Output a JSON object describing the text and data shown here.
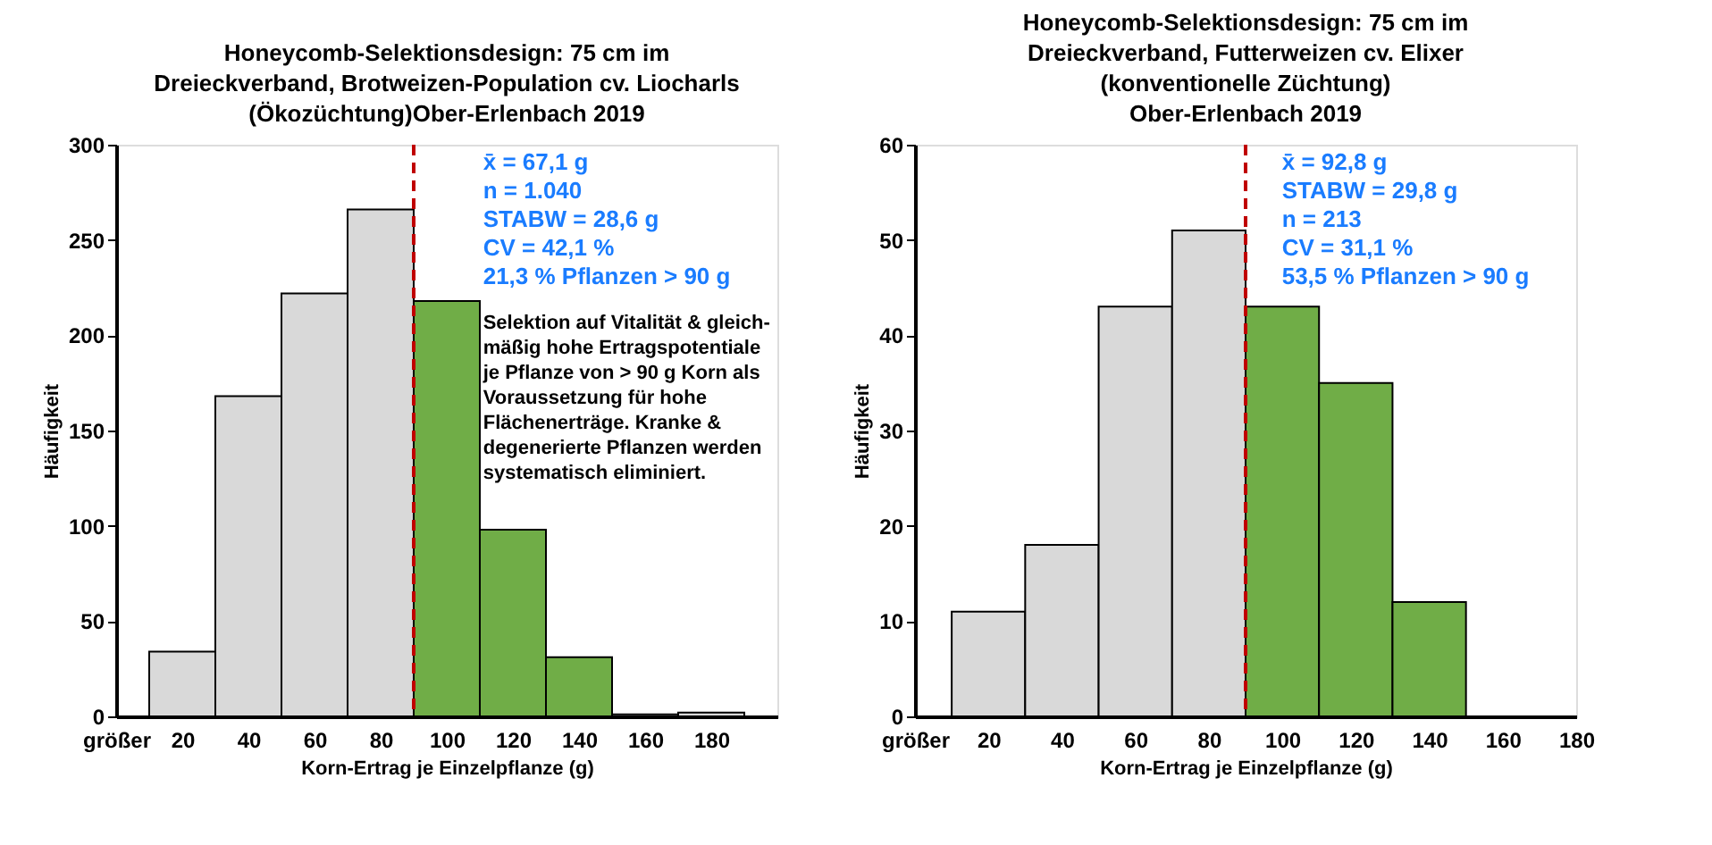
{
  "chart_data": [
    {
      "type": "histogram",
      "title": "Honeycomb-Selektionsdesign: 75 cm im\nDreieckverband, Brotweizen-Population cv. Liocharls\n(Ökozüchtung)Ober-Erlenbach 2019",
      "xlabel": "Korn-Ertrag je Einzelpflanze (g)",
      "ylabel": "Häufigkeit",
      "bins": [
        10,
        30,
        50,
        70,
        90,
        110,
        130,
        150,
        170,
        190
      ],
      "values": [
        34,
        168,
        222,
        266,
        218,
        98,
        31,
        1,
        2
      ],
      "colors": [
        "#d9d9d9",
        "#d9d9d9",
        "#d9d9d9",
        "#d9d9d9",
        "#70ad47",
        "#70ad47",
        "#70ad47",
        "#d9d9d9",
        "#d9d9d9"
      ],
      "xlim": [
        0,
        200
      ],
      "xticks": [
        {
          "value": 0,
          "label": "größer"
        },
        20,
        40,
        60,
        80,
        100,
        120,
        140,
        160,
        180
      ],
      "ylim": [
        0,
        300
      ],
      "yticks": [
        0,
        50,
        100,
        150,
        200,
        250,
        300
      ],
      "ref_lines": [
        {
          "axis": "x",
          "value": 90,
          "color": "#c00000",
          "line_style": "dashed"
        }
      ],
      "annotations": [
        "x̄ = 67,1 g",
        "n =  1.040",
        "STABW  = 28,6 g",
        "CV =  42,1 %",
        "21,3 % Pflanzen > 90 g",
        "Selektion auf Vitalität & gleich-\nmäßig hohe Ertragspotentiale\nje  Pflanze von > 90 g Korn als\nVoraussetzung für hohe\nFlächenerträge. Kranke &\ndegenerierte Pflanzen werden\nsystematisch eliminiert."
      ]
    },
    {
      "type": "histogram",
      "title": "Honeycomb-Selektionsdesign: 75 cm im\nDreieckverband, Futterweizen cv. Elixer\n(konventionelle Züchtung)\nOber-Erlenbach 2019",
      "xlabel": "Korn-Ertrag je Einzelpflanze (g)",
      "ylabel": "Häufigkeit",
      "bins": [
        10,
        30,
        50,
        70,
        90,
        110,
        130,
        150
      ],
      "values": [
        11,
        18,
        43,
        51,
        43,
        35,
        12
      ],
      "colors": [
        "#d9d9d9",
        "#d9d9d9",
        "#d9d9d9",
        "#d9d9d9",
        "#70ad47",
        "#70ad47",
        "#70ad47"
      ],
      "xlim": [
        0,
        180
      ],
      "xticks": [
        {
          "value": 0,
          "label": "größer"
        },
        20,
        40,
        60,
        80,
        100,
        120,
        140,
        160,
        180
      ],
      "ylim": [
        0,
        60
      ],
      "yticks": [
        0,
        10,
        20,
        30,
        40,
        50,
        60
      ],
      "ref_lines": [
        {
          "axis": "x",
          "value": 90,
          "color": "#c00000",
          "line_style": "dashed"
        }
      ],
      "annotations": [
        "x̄ = 92,8 g",
        "STABW  = 29,8 g",
        "n =  213",
        "CV =  31,1 %",
        "53,5 % Pflanzen > 90 g"
      ]
    }
  ]
}
